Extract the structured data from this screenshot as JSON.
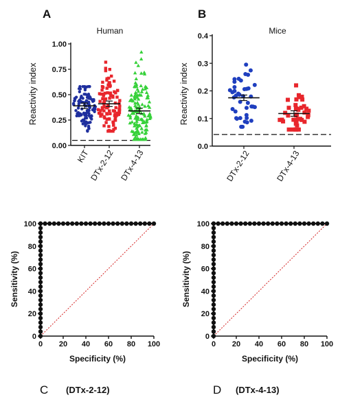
{
  "chart_data": [
    {
      "panel": "A",
      "type": "scatter",
      "title": "Human",
      "ylabel": "Reactivity index",
      "xlabel": "",
      "ylim": [
        0,
        1.0
      ],
      "yticks": [
        "0.00",
        "0.25",
        "0.50",
        "0.75",
        "1.00"
      ],
      "cutoff": 0.05,
      "categories": [
        "KIT",
        "DTx-2-12",
        "DTx-4-13"
      ],
      "series": [
        {
          "category": "KIT",
          "marker": "circle",
          "color": "#1f2f9e",
          "mean": 0.39,
          "n": 110,
          "min": 0.14,
          "max": 0.58
        },
        {
          "category": "DTx-2-12",
          "marker": "square",
          "color": "#e8262c",
          "mean": 0.41,
          "n": 110,
          "min": 0.14,
          "max": 0.82
        },
        {
          "category": "DTx-4-13",
          "marker": "triangle",
          "color": "#36d13a",
          "mean": 0.34,
          "n": 150,
          "min": 0.06,
          "max": 0.92
        }
      ]
    },
    {
      "panel": "B",
      "type": "scatter",
      "title": "Mice",
      "ylabel": "Reactivity index",
      "xlabel": "",
      "ylim": [
        0,
        0.4
      ],
      "yticks": [
        "0.0",
        "0.1",
        "0.2",
        "0.3",
        "0.4"
      ],
      "cutoff": 0.042,
      "categories": [
        "DTx-2-12",
        "DTx-4-13"
      ],
      "series": [
        {
          "category": "DTx-2-12",
          "marker": "circle",
          "color": "#1f3fbf",
          "mean": 0.175,
          "n": 40,
          "min": 0.07,
          "max": 0.295
        },
        {
          "category": "DTx-4-13",
          "marker": "square",
          "color": "#e8262c",
          "mean": 0.118,
          "n": 40,
          "min": 0.06,
          "max": 0.22
        }
      ]
    },
    {
      "panel": "C",
      "type": "line",
      "title": "",
      "caption": "(DTx-2-12)",
      "xlabel": "Specificity (%)",
      "ylabel": "Sensitivity (%)",
      "xlim": [
        0,
        100
      ],
      "ylim": [
        0,
        100
      ],
      "xticks": [
        "0",
        "20",
        "40",
        "60",
        "80",
        "100"
      ],
      "yticks": [
        "0",
        "20",
        "40",
        "60",
        "80",
        "100"
      ],
      "roc_vertical": {
        "x": 0,
        "y": [
          0,
          4,
          8,
          12,
          16,
          20,
          24,
          28,
          32,
          36,
          40,
          44,
          48,
          52,
          56,
          60,
          64,
          68,
          72,
          76,
          80,
          84,
          88,
          92,
          96,
          100
        ]
      },
      "roc_horizontal": {
        "y": 100,
        "x": [
          0,
          4,
          8,
          12,
          16,
          20,
          24,
          28,
          32,
          36,
          40,
          44,
          48,
          52,
          56,
          60,
          64,
          68,
          72,
          76,
          80,
          84,
          88,
          92,
          96,
          100
        ]
      },
      "reference_line": [
        [
          0,
          0
        ],
        [
          100,
          100
        ]
      ],
      "reference_color": "#d42020"
    },
    {
      "panel": "D",
      "type": "line",
      "title": "",
      "caption": "(DTx-4-13)",
      "xlabel": "Specificity (%)",
      "ylabel": "Sensitivity (%)",
      "xlim": [
        0,
        100
      ],
      "ylim": [
        0,
        100
      ],
      "xticks": [
        "0",
        "20",
        "40",
        "60",
        "80",
        "100"
      ],
      "yticks": [
        "0",
        "20",
        "40",
        "60",
        "80",
        "100"
      ],
      "roc_vertical": {
        "x": 0,
        "y": [
          0,
          4,
          8,
          12,
          16,
          20,
          24,
          28,
          32,
          36,
          40,
          44,
          48,
          52,
          56,
          60,
          64,
          68,
          72,
          76,
          80,
          84,
          88,
          92,
          96,
          100
        ]
      },
      "roc_horizontal": {
        "y": 100,
        "x": [
          0,
          4,
          8,
          12,
          16,
          20,
          24,
          28,
          32,
          36,
          40,
          44,
          48,
          52,
          56,
          60,
          64,
          68,
          72,
          76,
          80,
          84,
          88,
          92,
          96,
          100
        ]
      },
      "reference_line": [
        [
          0,
          0
        ],
        [
          100,
          100
        ]
      ],
      "reference_color": "#d42020"
    }
  ]
}
